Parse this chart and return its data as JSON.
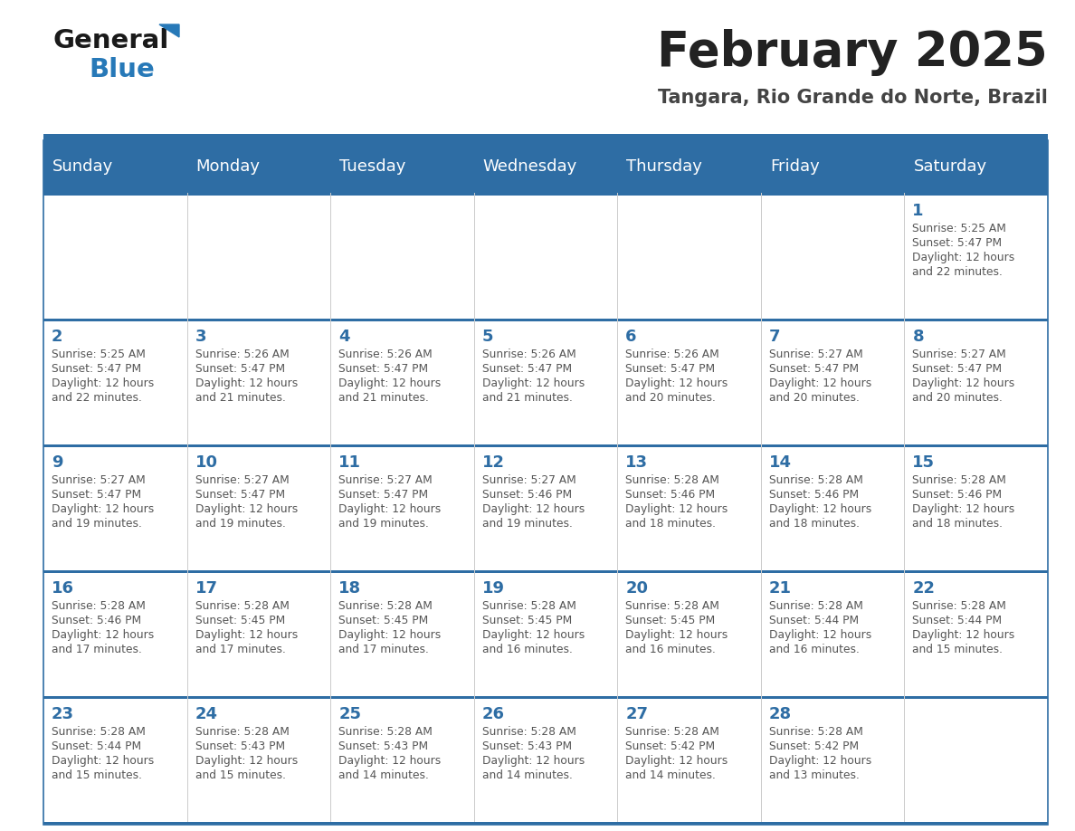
{
  "title": "February 2025",
  "subtitle": "Tangara, Rio Grande do Norte, Brazil",
  "days_of_week": [
    "Sunday",
    "Monday",
    "Tuesday",
    "Wednesday",
    "Thursday",
    "Friday",
    "Saturday"
  ],
  "header_bg": "#2E6DA4",
  "header_text": "#FFFFFF",
  "cell_bg": "#FFFFFF",
  "row_border_color": "#2E6DA4",
  "col_border_color": "#CCCCCC",
  "day_num_color": "#2E6DA4",
  "info_color": "#555555",
  "title_color": "#222222",
  "subtitle_color": "#444444",
  "logo_general_color": "#1a1a1a",
  "logo_blue_color": "#2779B8",
  "calendar": [
    [
      null,
      null,
      null,
      null,
      null,
      null,
      {
        "day": 1,
        "sunrise": "5:25 AM",
        "sunset": "5:47 PM",
        "daylight": "12 hours",
        "daylight2": "and 22 minutes."
      }
    ],
    [
      {
        "day": 2,
        "sunrise": "5:25 AM",
        "sunset": "5:47 PM",
        "daylight": "12 hours",
        "daylight2": "and 22 minutes."
      },
      {
        "day": 3,
        "sunrise": "5:26 AM",
        "sunset": "5:47 PM",
        "daylight": "12 hours",
        "daylight2": "and 21 minutes."
      },
      {
        "day": 4,
        "sunrise": "5:26 AM",
        "sunset": "5:47 PM",
        "daylight": "12 hours",
        "daylight2": "and 21 minutes."
      },
      {
        "day": 5,
        "sunrise": "5:26 AM",
        "sunset": "5:47 PM",
        "daylight": "12 hours",
        "daylight2": "and 21 minutes."
      },
      {
        "day": 6,
        "sunrise": "5:26 AM",
        "sunset": "5:47 PM",
        "daylight": "12 hours",
        "daylight2": "and 20 minutes."
      },
      {
        "day": 7,
        "sunrise": "5:27 AM",
        "sunset": "5:47 PM",
        "daylight": "12 hours",
        "daylight2": "and 20 minutes."
      },
      {
        "day": 8,
        "sunrise": "5:27 AM",
        "sunset": "5:47 PM",
        "daylight": "12 hours",
        "daylight2": "and 20 minutes."
      }
    ],
    [
      {
        "day": 9,
        "sunrise": "5:27 AM",
        "sunset": "5:47 PM",
        "daylight": "12 hours",
        "daylight2": "and 19 minutes."
      },
      {
        "day": 10,
        "sunrise": "5:27 AM",
        "sunset": "5:47 PM",
        "daylight": "12 hours",
        "daylight2": "and 19 minutes."
      },
      {
        "day": 11,
        "sunrise": "5:27 AM",
        "sunset": "5:47 PM",
        "daylight": "12 hours",
        "daylight2": "and 19 minutes."
      },
      {
        "day": 12,
        "sunrise": "5:27 AM",
        "sunset": "5:46 PM",
        "daylight": "12 hours",
        "daylight2": "and 19 minutes."
      },
      {
        "day": 13,
        "sunrise": "5:28 AM",
        "sunset": "5:46 PM",
        "daylight": "12 hours",
        "daylight2": "and 18 minutes."
      },
      {
        "day": 14,
        "sunrise": "5:28 AM",
        "sunset": "5:46 PM",
        "daylight": "12 hours",
        "daylight2": "and 18 minutes."
      },
      {
        "day": 15,
        "sunrise": "5:28 AM",
        "sunset": "5:46 PM",
        "daylight": "12 hours",
        "daylight2": "and 18 minutes."
      }
    ],
    [
      {
        "day": 16,
        "sunrise": "5:28 AM",
        "sunset": "5:46 PM",
        "daylight": "12 hours",
        "daylight2": "and 17 minutes."
      },
      {
        "day": 17,
        "sunrise": "5:28 AM",
        "sunset": "5:45 PM",
        "daylight": "12 hours",
        "daylight2": "and 17 minutes."
      },
      {
        "day": 18,
        "sunrise": "5:28 AM",
        "sunset": "5:45 PM",
        "daylight": "12 hours",
        "daylight2": "and 17 minutes."
      },
      {
        "day": 19,
        "sunrise": "5:28 AM",
        "sunset": "5:45 PM",
        "daylight": "12 hours",
        "daylight2": "and 16 minutes."
      },
      {
        "day": 20,
        "sunrise": "5:28 AM",
        "sunset": "5:45 PM",
        "daylight": "12 hours",
        "daylight2": "and 16 minutes."
      },
      {
        "day": 21,
        "sunrise": "5:28 AM",
        "sunset": "5:44 PM",
        "daylight": "12 hours",
        "daylight2": "and 16 minutes."
      },
      {
        "day": 22,
        "sunrise": "5:28 AM",
        "sunset": "5:44 PM",
        "daylight": "12 hours",
        "daylight2": "and 15 minutes."
      }
    ],
    [
      {
        "day": 23,
        "sunrise": "5:28 AM",
        "sunset": "5:44 PM",
        "daylight": "12 hours",
        "daylight2": "and 15 minutes."
      },
      {
        "day": 24,
        "sunrise": "5:28 AM",
        "sunset": "5:43 PM",
        "daylight": "12 hours",
        "daylight2": "and 15 minutes."
      },
      {
        "day": 25,
        "sunrise": "5:28 AM",
        "sunset": "5:43 PM",
        "daylight": "12 hours",
        "daylight2": "and 14 minutes."
      },
      {
        "day": 26,
        "sunrise": "5:28 AM",
        "sunset": "5:43 PM",
        "daylight": "12 hours",
        "daylight2": "and 14 minutes."
      },
      {
        "day": 27,
        "sunrise": "5:28 AM",
        "sunset": "5:42 PM",
        "daylight": "12 hours",
        "daylight2": "and 14 minutes."
      },
      {
        "day": 28,
        "sunrise": "5:28 AM",
        "sunset": "5:42 PM",
        "daylight": "12 hours",
        "daylight2": "and 13 minutes."
      },
      null
    ]
  ]
}
